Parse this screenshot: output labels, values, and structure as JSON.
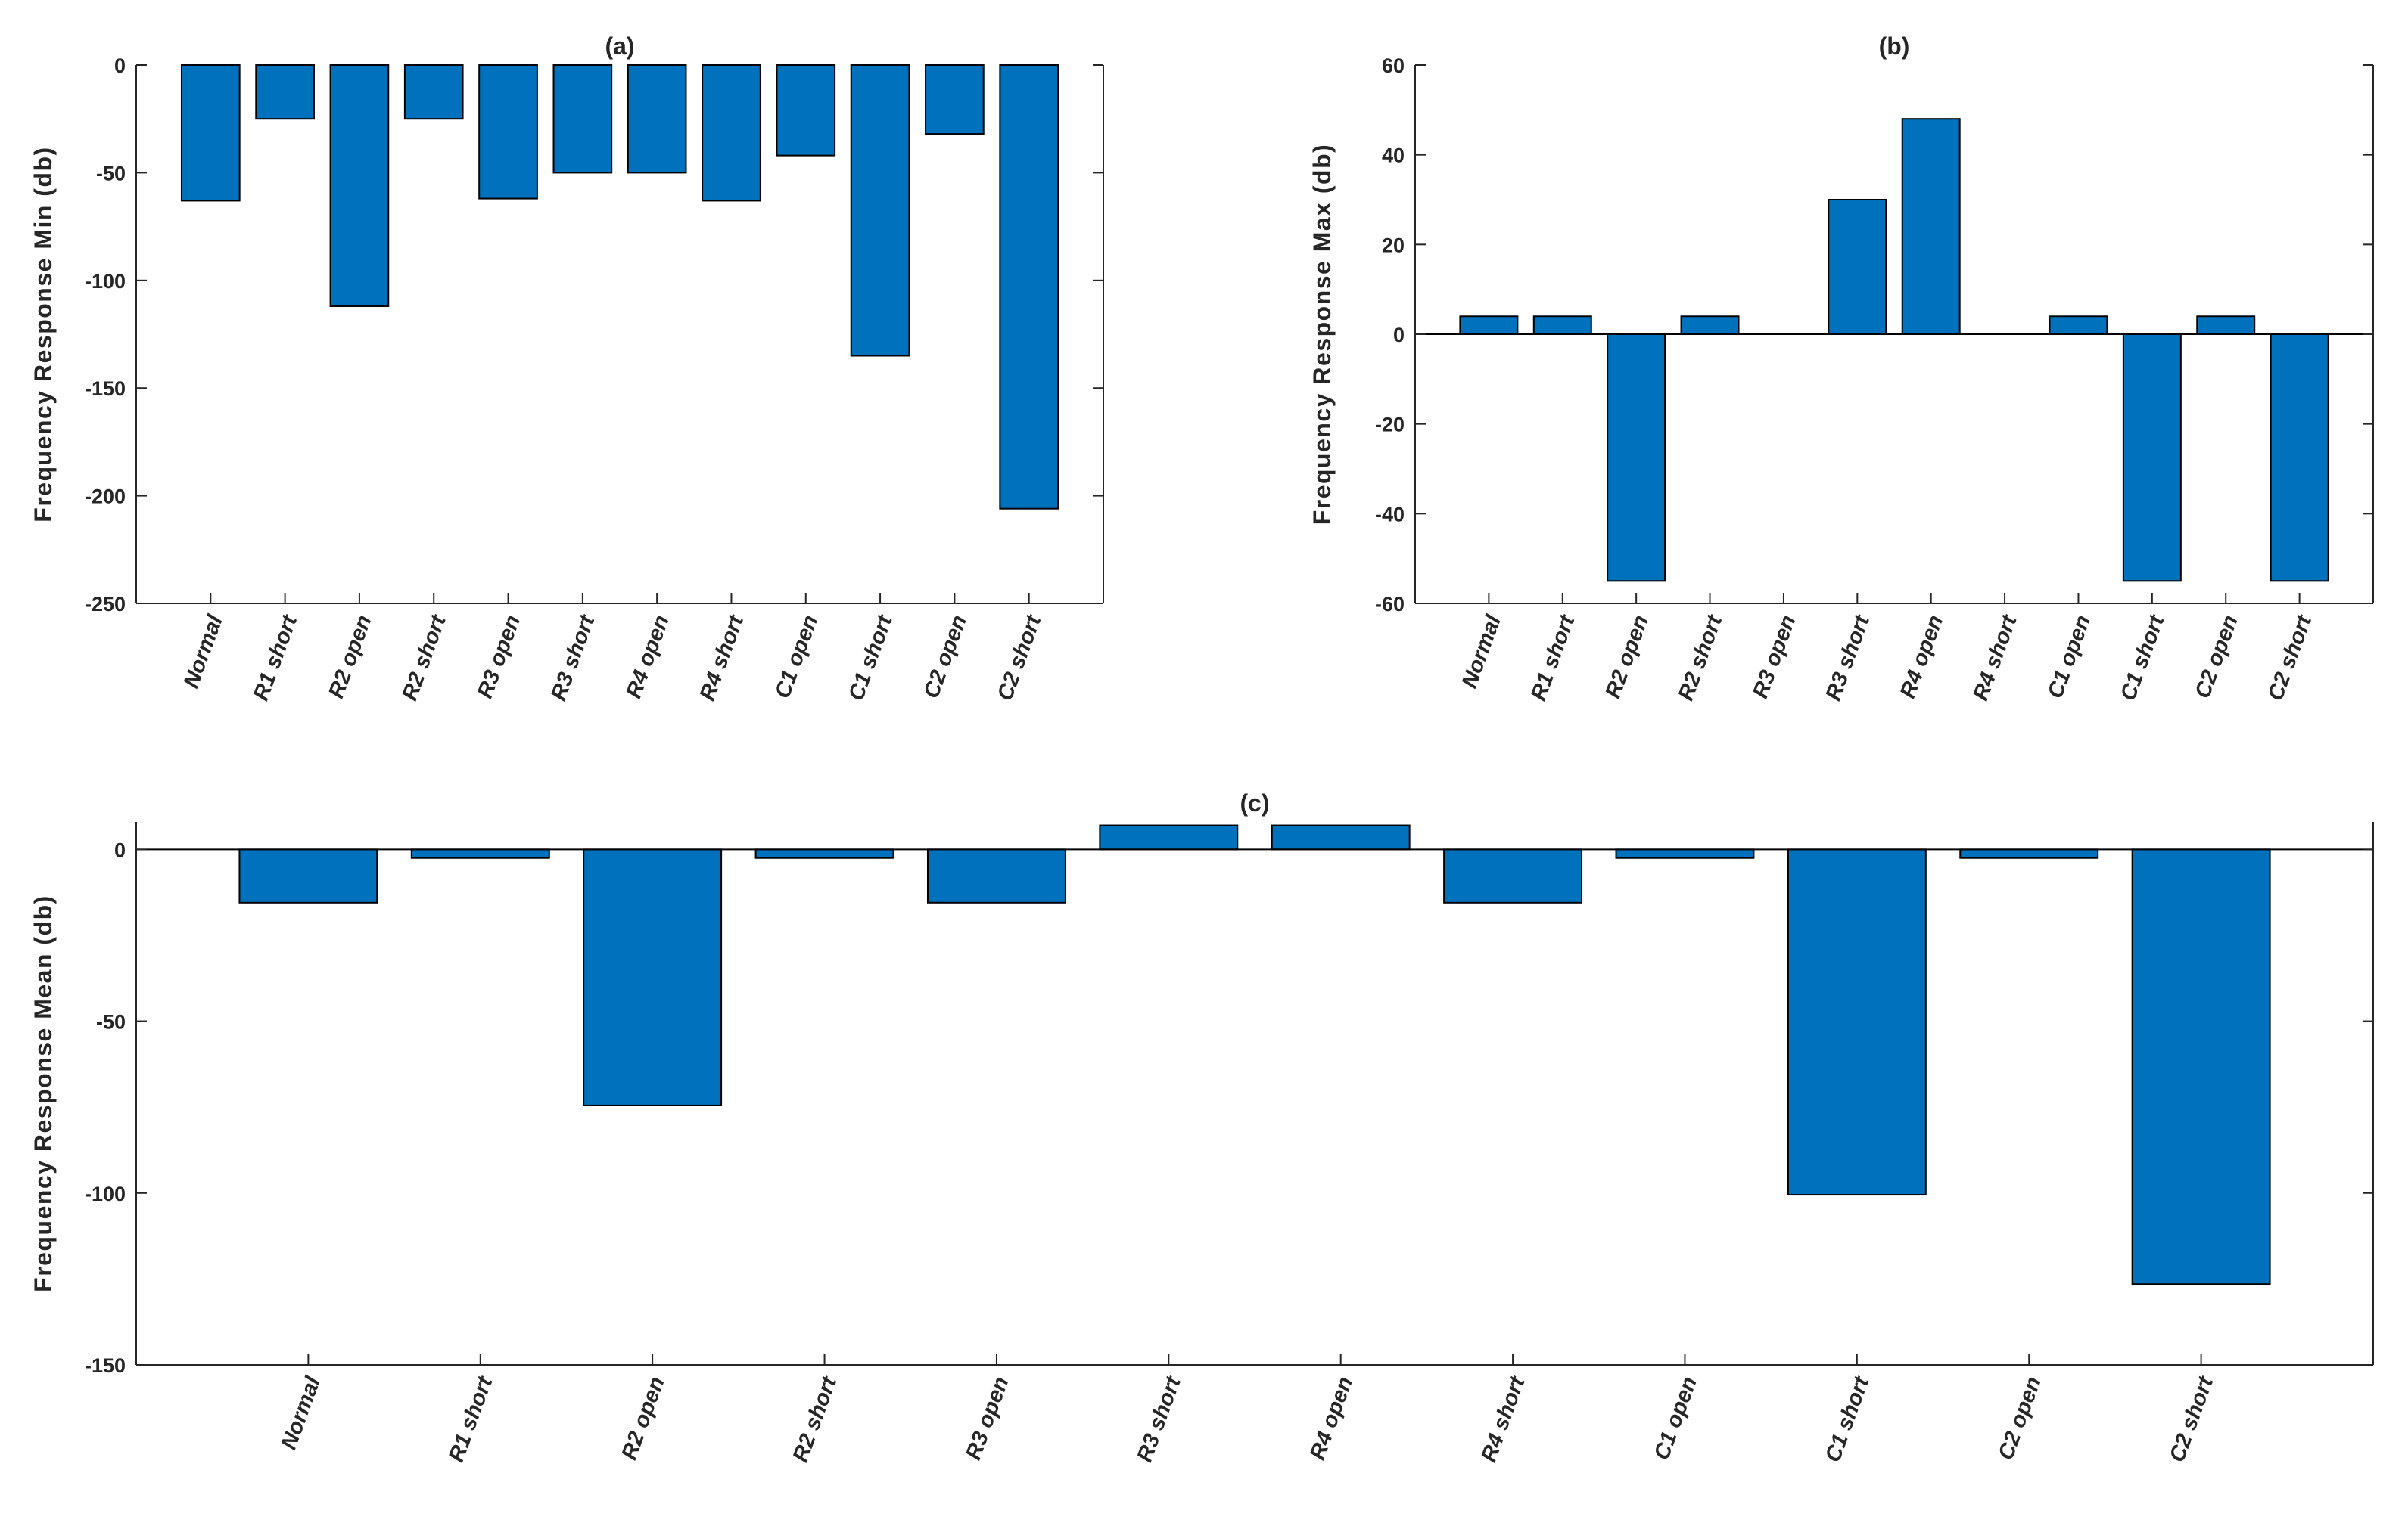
{
  "colors": {
    "bar": "#0072BD",
    "axis": "#262626"
  },
  "chart_data": [
    {
      "id": "a",
      "type": "bar",
      "title": "(a)",
      "xlabel": "",
      "ylabel": "Frequency Response Min (db)",
      "ylim": [
        -250,
        0
      ],
      "yticks": [
        0,
        -50,
        -100,
        -150,
        -200,
        -250
      ],
      "categories": [
        "Normal",
        "R1 short",
        "R2 open",
        "R2 short",
        "R3 open",
        "R3 short",
        "R4 open",
        "R4 short",
        "C1 open",
        "C1 short",
        "C2 open",
        "C2 short"
      ],
      "values": [
        -63,
        -25,
        -112,
        -25,
        -62,
        -50,
        -50,
        -63,
        -42,
        -135,
        -32,
        -206
      ],
      "grid": false
    },
    {
      "id": "b",
      "type": "bar",
      "title": "(b)",
      "xlabel": "",
      "ylabel": "Frequency Response Max (db)",
      "ylim": [
        -60,
        60
      ],
      "yticks": [
        60,
        40,
        20,
        0,
        -20,
        -40,
        -60
      ],
      "categories": [
        "Normal",
        "R1 short",
        "R2 open",
        "R2 short",
        "R3 open",
        "R3 short",
        "R4 open",
        "R4 short",
        "C1 open",
        "C1 short",
        "C2 open",
        "C2 short"
      ],
      "values": [
        4,
        4,
        -55,
        4,
        0,
        30,
        48,
        0,
        4,
        -55,
        4,
        -55
      ],
      "grid": false
    },
    {
      "id": "c",
      "type": "bar",
      "title": "(c)",
      "xlabel": "",
      "ylabel": "Frequency Response Mean (db)",
      "ylim": [
        -150,
        8
      ],
      "yticks": [
        0,
        -50,
        -100,
        -150
      ],
      "categories": [
        "Normal",
        "R1 short",
        "R2 open",
        "R2 short",
        "R3 open",
        "R3 short",
        "R4 open",
        "R4 short",
        "C1 open",
        "C1 short",
        "C2 open",
        "C2 short"
      ],
      "values": [
        -15.5,
        -2.5,
        -74.5,
        -2.5,
        -15.5,
        7,
        7,
        -15.5,
        -2.5,
        -100.5,
        -2.5,
        -126.5
      ],
      "grid": false
    }
  ]
}
